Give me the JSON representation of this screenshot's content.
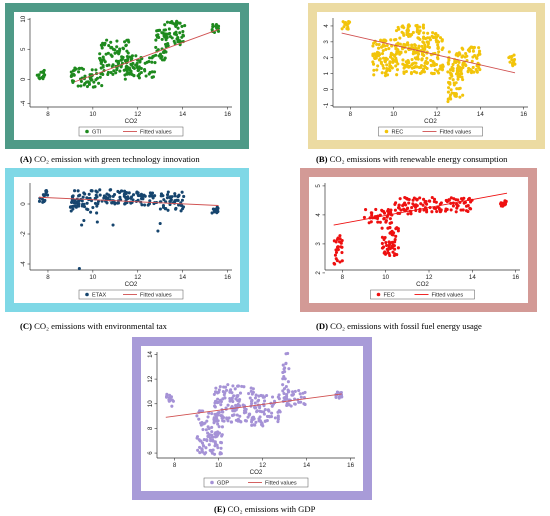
{
  "fitted_label": "Fitted values",
  "xlabel": "CO2",
  "panels": [
    {
      "id": "A",
      "caption_prefix": "(A)",
      "caption_text": "CO₂ emission with green technology innovation",
      "frame_color": "#4e9a87",
      "point_color": "#1e8a1e",
      "line_color": "#d05050"
    },
    {
      "id": "B",
      "caption_prefix": "(B)",
      "caption_text": "CO₂ emissions with renewable energy consumption",
      "frame_color": "#ecdba2",
      "point_color": "#f2c40a",
      "line_color": "#d05050"
    },
    {
      "id": "C",
      "caption_prefix": "(C)",
      "caption_text": "CO₂ emissions with environmental tax",
      "frame_color": "#7fd8e6",
      "point_color": "#16456e",
      "line_color": "#d05050"
    },
    {
      "id": "D",
      "caption_prefix": "(D)",
      "caption_text": "CO₂ emissions with fossil fuel energy usage",
      "frame_color": "#d39a96",
      "point_color": "#ee1010",
      "line_color": "#ee1010"
    },
    {
      "id": "E",
      "caption_prefix": "(E)",
      "caption_text": "CO₂ emissions with GDP",
      "frame_color": "#a89bd8",
      "point_color": "#a592d6",
      "line_color": "#d05050"
    }
  ],
  "chart_data": [
    {
      "type": "scatter",
      "series": [
        {
          "name": "GTI"
        },
        {
          "name": "Fitted values"
        }
      ],
      "xlabel": "CO2",
      "ylabel": "",
      "xlim": [
        7.2,
        16.2
      ],
      "ylim": [
        -4.6,
        10.2
      ],
      "xticks": [
        8,
        10,
        12,
        14,
        16
      ],
      "yticks": [
        -4,
        0,
        5,
        10
      ],
      "fit": [
        [
          9.2,
          -0.4
        ],
        [
          15.6,
          8.3
        ]
      ],
      "clusters": [
        {
          "x": [
            7.5,
            7.9
          ],
          "y": [
            0.0,
            1.6
          ]
        },
        {
          "x": [
            9.0,
            10.4
          ],
          "y": [
            -1.3,
            1.9
          ]
        },
        {
          "x": [
            10.3,
            11.6
          ],
          "y": [
            0.8,
            6.6
          ]
        },
        {
          "x": [
            11.4,
            12.8
          ],
          "y": [
            0.0,
            4.0
          ]
        },
        {
          "x": [
            12.8,
            13.3
          ],
          "y": [
            3.0,
            8.2
          ]
        },
        {
          "x": [
            13.2,
            14.1
          ],
          "y": [
            5.5,
            9.8
          ]
        },
        {
          "x": [
            15.3,
            15.6
          ],
          "y": [
            7.8,
            9.2
          ]
        }
      ]
    },
    {
      "type": "scatter",
      "series": [
        {
          "name": "REC"
        },
        {
          "name": "Fitted values"
        }
      ],
      "xlabel": "CO2",
      "ylabel": "",
      "xlim": [
        7.2,
        16.2
      ],
      "ylim": [
        -1.1,
        4.5
      ],
      "xticks": [
        8,
        10,
        12,
        14,
        16
      ],
      "yticks": [
        -1,
        0,
        1,
        2,
        3,
        4
      ],
      "fit": [
        [
          7.6,
          3.55
        ],
        [
          15.6,
          1.05
        ]
      ],
      "clusters": [
        {
          "x": [
            7.6,
            8.0
          ],
          "y": [
            3.8,
            4.3
          ]
        },
        {
          "x": [
            9.0,
            10.2
          ],
          "y": [
            0.8,
            3.2
          ]
        },
        {
          "x": [
            10.1,
            11.4
          ],
          "y": [
            1.0,
            4.1
          ]
        },
        {
          "x": [
            11.3,
            12.3
          ],
          "y": [
            1.0,
            3.6
          ]
        },
        {
          "x": [
            12.5,
            13.2
          ],
          "y": [
            -0.8,
            2.4
          ]
        },
        {
          "x": [
            13.0,
            14.0
          ],
          "y": [
            1.0,
            2.7
          ]
        },
        {
          "x": [
            15.3,
            15.6
          ],
          "y": [
            1.5,
            2.2
          ]
        }
      ]
    },
    {
      "type": "scatter",
      "series": [
        {
          "name": "ETAX"
        },
        {
          "name": "Fitted values"
        }
      ],
      "xlabel": "CO2",
      "ylabel": "",
      "xlim": [
        7.2,
        16.2
      ],
      "ylim": [
        -4.4,
        1.4
      ],
      "xticks": [
        8,
        10,
        12,
        14,
        16
      ],
      "yticks": [
        -4,
        -2,
        0
      ],
      "fit": [
        [
          7.6,
          0.45
        ],
        [
          15.6,
          -0.1
        ]
      ],
      "clusters": [
        {
          "x": [
            7.6,
            8.0
          ],
          "y": [
            0.1,
            0.9
          ]
        },
        {
          "x": [
            9.0,
            10.2
          ],
          "y": [
            -0.6,
            0.9
          ]
        },
        {
          "x": [
            10.1,
            11.6
          ],
          "y": [
            0.0,
            1.0
          ]
        },
        {
          "x": [
            11.4,
            13.0
          ],
          "y": [
            -0.1,
            0.8
          ]
        },
        {
          "x": [
            13.0,
            14.1
          ],
          "y": [
            -0.5,
            0.8
          ]
        },
        {
          "x": [
            15.3,
            15.6
          ],
          "y": [
            -0.6,
            -0.2
          ]
        }
      ],
      "outliers": [
        [
          9.5,
          -1.4
        ],
        [
          9.6,
          -1.1
        ],
        [
          10.2,
          -1.2
        ],
        [
          12.9,
          -1.8
        ],
        [
          13.0,
          -1.3
        ],
        [
          10.9,
          -1.4
        ],
        [
          9.4,
          -4.3
        ]
      ]
    },
    {
      "type": "scatter",
      "series": [
        {
          "name": "FEC"
        },
        {
          "name": "Fitted values"
        }
      ],
      "xlabel": "CO2",
      "ylabel": "",
      "xlim": [
        7.2,
        16.2
      ],
      "ylim": [
        2.1,
        5.1
      ],
      "xticks": [
        8,
        10,
        12,
        14,
        16
      ],
      "yticks": [
        2,
        3,
        4,
        5
      ],
      "fit": [
        [
          7.6,
          3.65
        ],
        [
          15.6,
          4.75
        ]
      ],
      "clusters": [
        {
          "x": [
            7.6,
            8.0
          ],
          "y": [
            2.3,
            3.3
          ]
        },
        {
          "x": [
            9.0,
            10.3
          ],
          "y": [
            3.7,
            4.2
          ]
        },
        {
          "x": [
            9.8,
            10.6
          ],
          "y": [
            2.6,
            3.6
          ]
        },
        {
          "x": [
            10.4,
            11.4
          ],
          "y": [
            4.0,
            4.6
          ]
        },
        {
          "x": [
            11.3,
            12.6
          ],
          "y": [
            4.1,
            4.6
          ]
        },
        {
          "x": [
            12.7,
            14.0
          ],
          "y": [
            4.1,
            4.6
          ]
        },
        {
          "x": [
            15.3,
            15.6
          ],
          "y": [
            4.3,
            4.5
          ]
        }
      ]
    },
    {
      "type": "scatter",
      "series": [
        {
          "name": "GDP"
        },
        {
          "name": "Fitted values"
        }
      ],
      "xlabel": "CO2",
      "ylabel": "",
      "xlim": [
        7.2,
        16.2
      ],
      "ylim": [
        5.6,
        14.2
      ],
      "xticks": [
        8,
        10,
        12,
        14,
        16
      ],
      "yticks": [
        6,
        8,
        10,
        12,
        14
      ],
      "fit": [
        [
          7.6,
          8.9
        ],
        [
          15.6,
          10.8
        ]
      ],
      "clusters": [
        {
          "x": [
            7.6,
            8.0
          ],
          "y": [
            9.8,
            10.8
          ]
        },
        {
          "x": [
            9.0,
            10.2
          ],
          "y": [
            5.8,
            9.5
          ]
        },
        {
          "x": [
            9.8,
            11.6
          ],
          "y": [
            8.5,
            11.6
          ]
        },
        {
          "x": [
            11.5,
            12.8
          ],
          "y": [
            8.2,
            10.8
          ]
        },
        {
          "x": [
            12.9,
            13.2
          ],
          "y": [
            10.0,
            14.1
          ]
        },
        {
          "x": [
            13.0,
            14.0
          ],
          "y": [
            9.8,
            11.2
          ]
        },
        {
          "x": [
            15.3,
            15.6
          ],
          "y": [
            10.3,
            11.0
          ]
        }
      ]
    }
  ]
}
